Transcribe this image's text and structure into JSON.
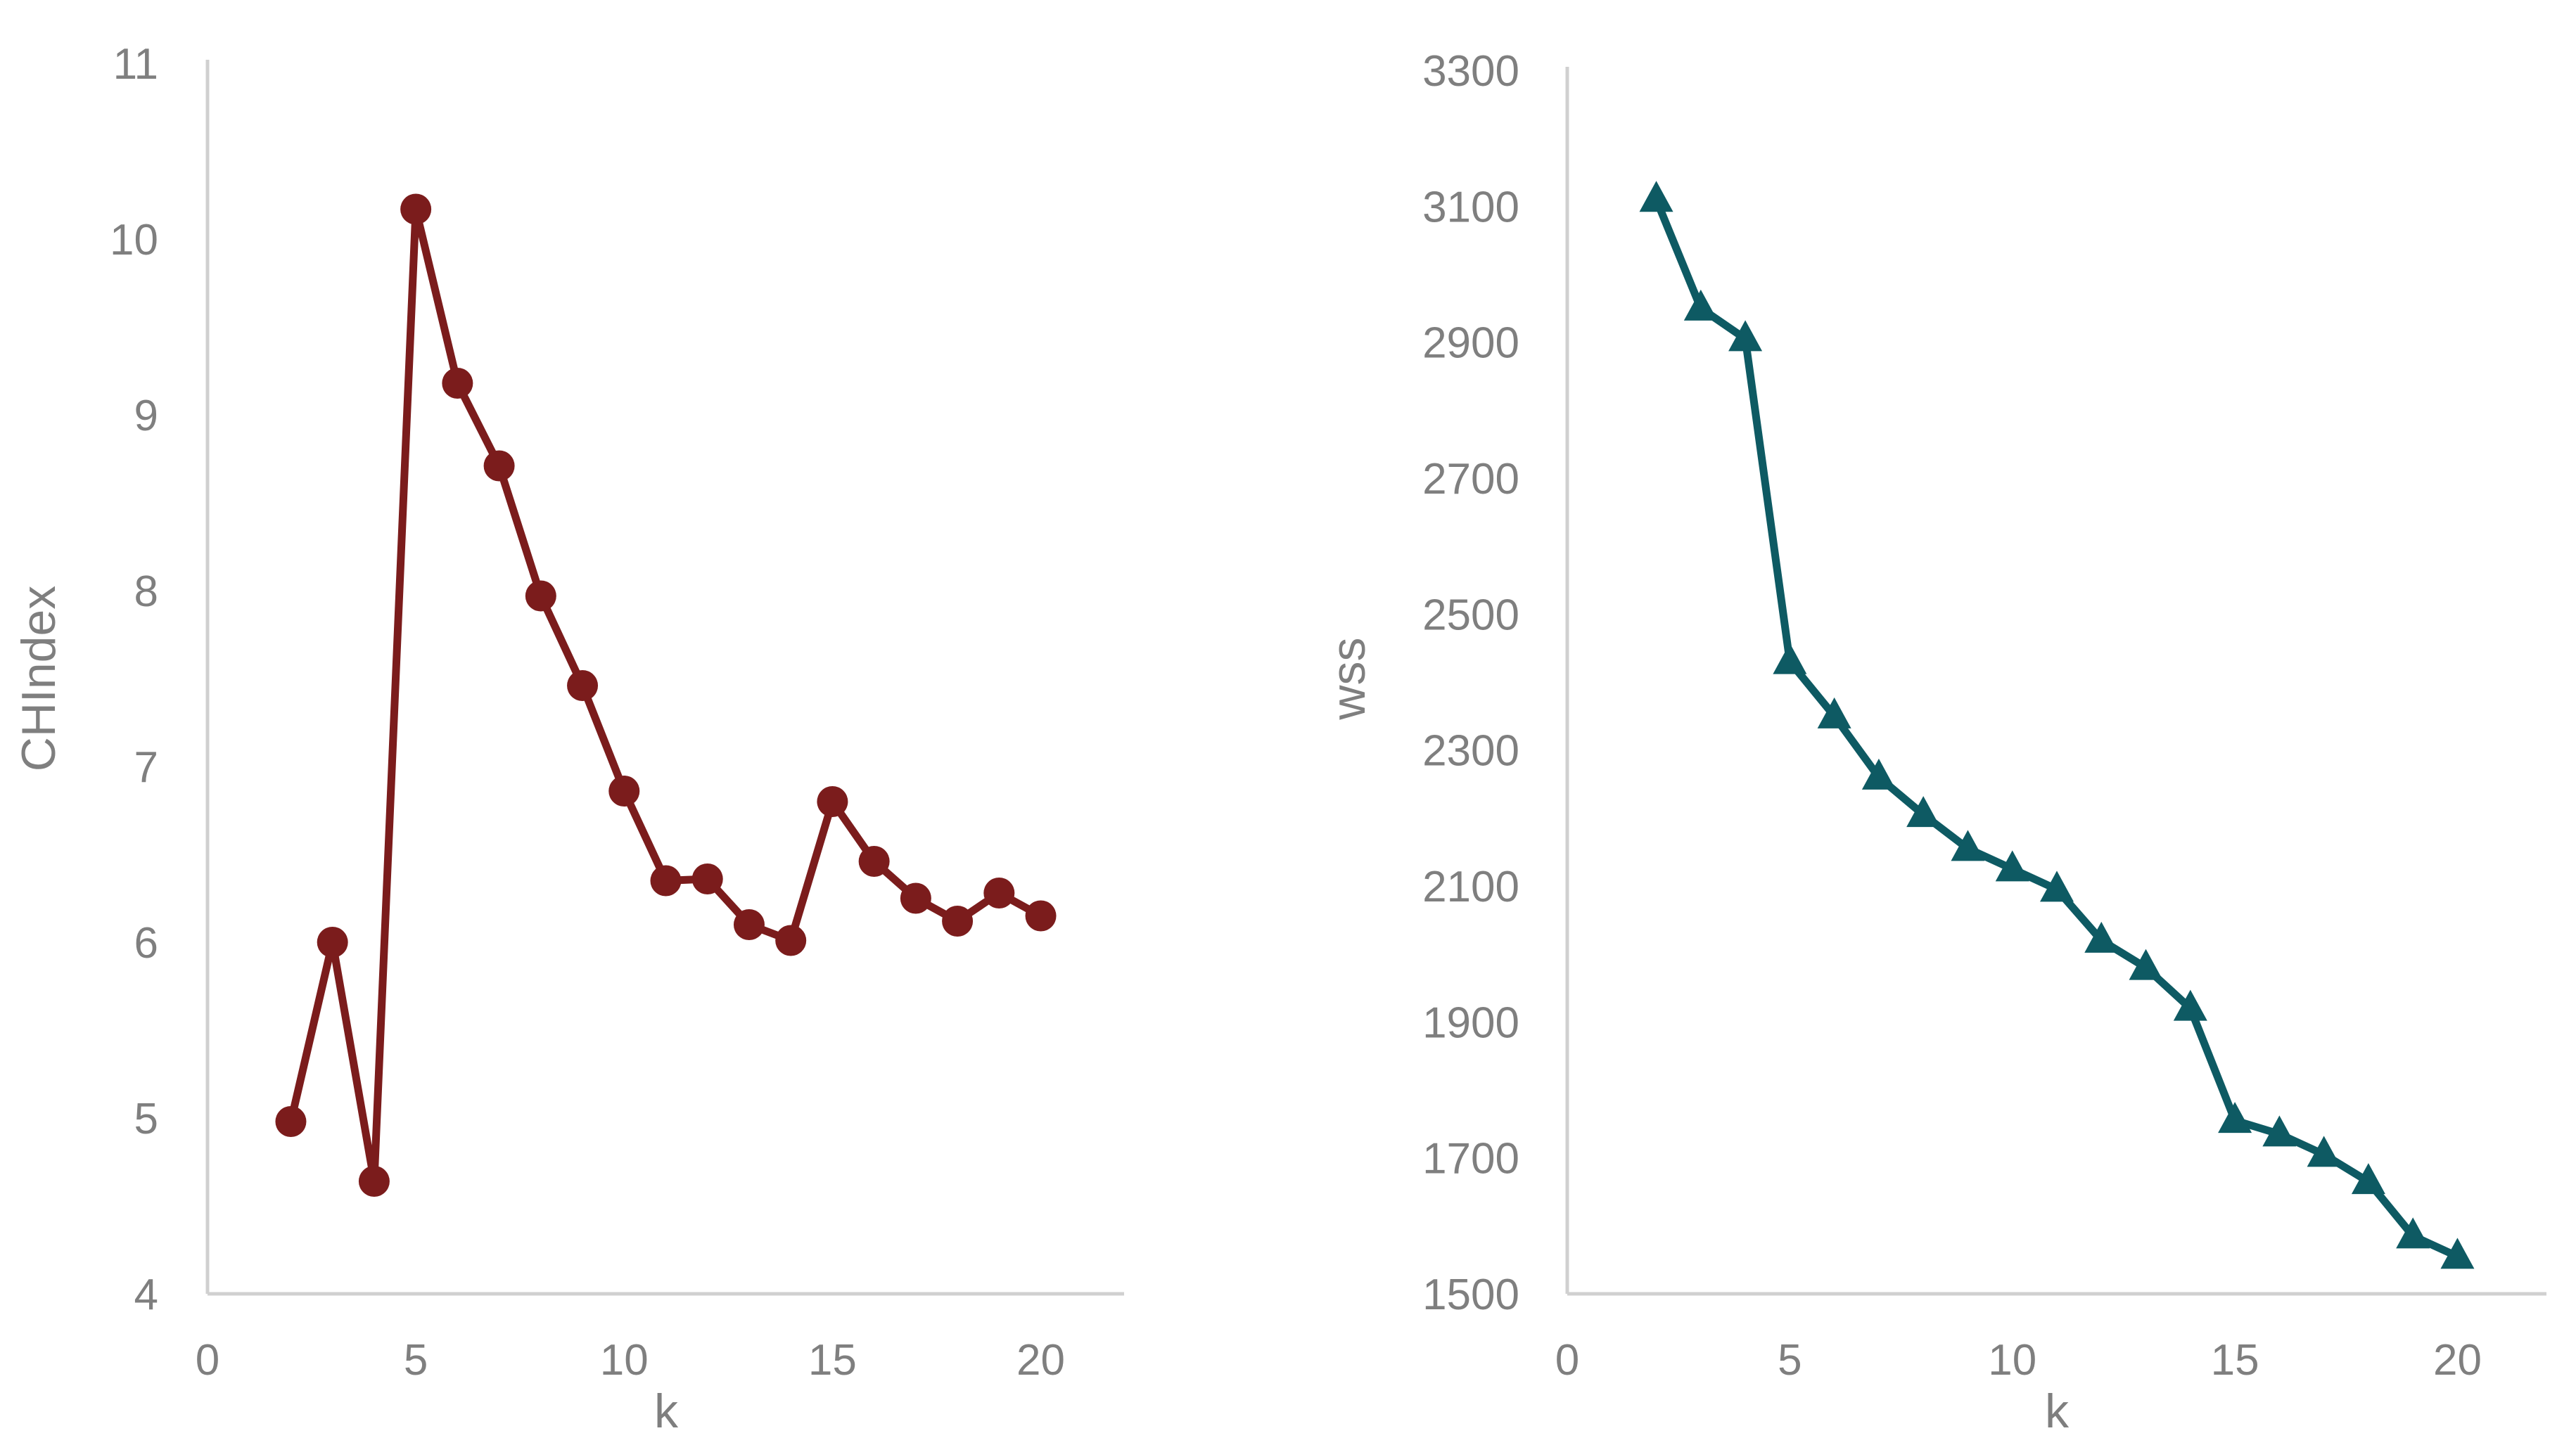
{
  "chart_data": [
    {
      "type": "line",
      "xlabel": "k",
      "ylabel": "CHIndex",
      "xlim": [
        0,
        22
      ],
      "ylim": [
        4,
        11
      ],
      "xticks": [
        0,
        5,
        10,
        15,
        20
      ],
      "yticks": [
        4,
        5,
        6,
        7,
        8,
        9,
        10,
        11
      ],
      "grid": false,
      "legend": "none",
      "marker": "circle",
      "color": "#7b1c1c",
      "series": [
        {
          "x": [
            2,
            3,
            4,
            5,
            6,
            7,
            8,
            9,
            10,
            11,
            12,
            13,
            14,
            15,
            16,
            17,
            18,
            19,
            20
          ],
          "values": [
            4.98,
            6.0,
            4.64,
            10.17,
            9.18,
            8.71,
            7.97,
            7.46,
            6.86,
            6.35,
            6.36,
            6.1,
            6.01,
            6.8,
            6.46,
            6.25,
            6.12,
            6.28,
            6.15
          ]
        }
      ]
    },
    {
      "type": "line",
      "xlabel": "k",
      "ylabel": "wss",
      "xlim": [
        0,
        22
      ],
      "ylim": [
        1500,
        3300
      ],
      "xticks": [
        0,
        5,
        10,
        15,
        20
      ],
      "yticks": [
        1500,
        1700,
        1900,
        2100,
        2300,
        2500,
        2700,
        2900,
        3100,
        3300
      ],
      "grid": false,
      "legend": "none",
      "marker": "triangle",
      "color": "#0e5a63",
      "series": [
        {
          "x": [
            2,
            3,
            4,
            5,
            6,
            7,
            8,
            9,
            10,
            11,
            12,
            13,
            14,
            15,
            16,
            17,
            18,
            19,
            20
          ],
          "values": [
            3110,
            2950,
            2905,
            2430,
            2350,
            2260,
            2205,
            2155,
            2125,
            2095,
            2020,
            1980,
            1920,
            1755,
            1735,
            1705,
            1665,
            1585,
            1555
          ]
        }
      ]
    }
  ]
}
